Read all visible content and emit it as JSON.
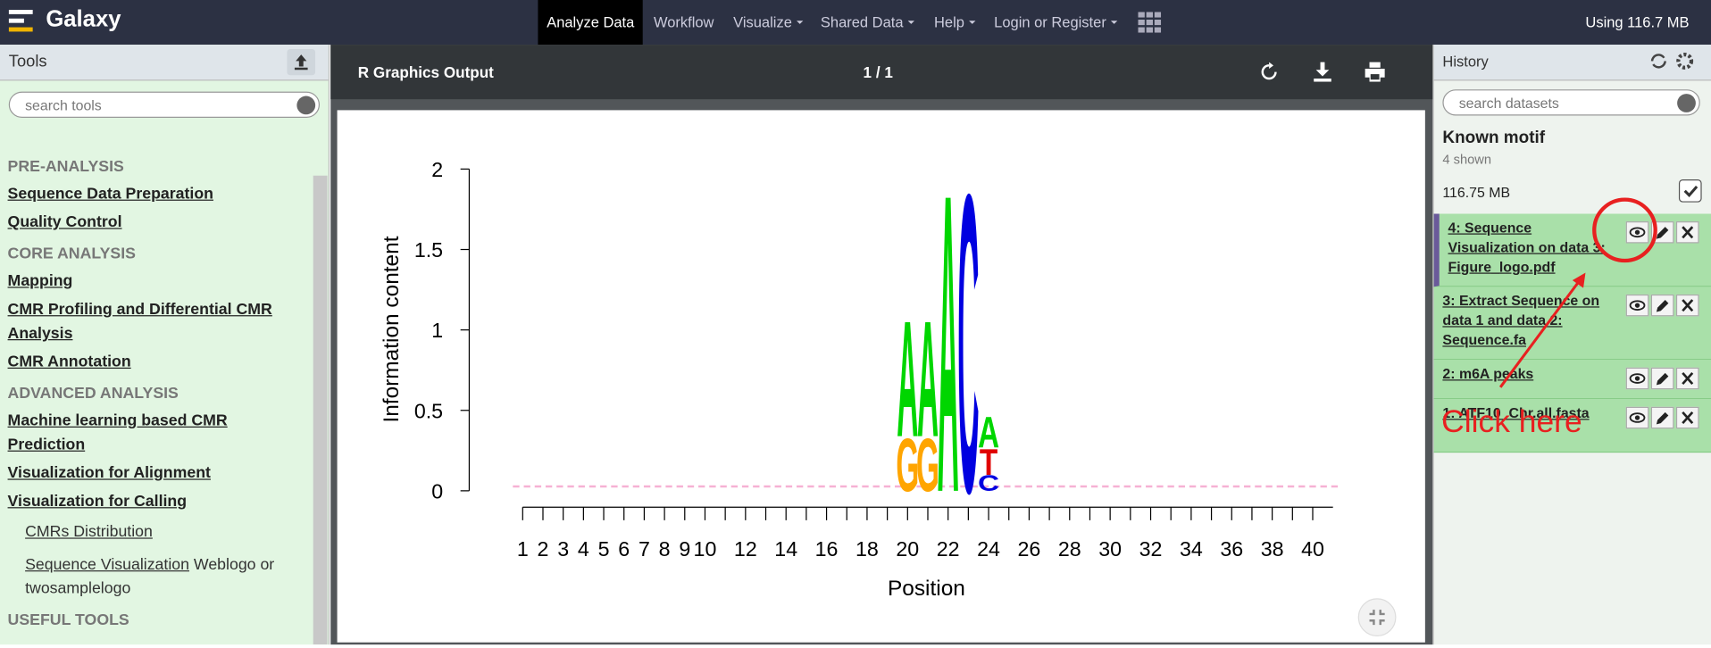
{
  "navbar": {
    "brand": "Galaxy",
    "items": [
      "Analyze Data",
      "Workflow",
      "Visualize",
      "Shared Data",
      "Help",
      "Login or Register"
    ],
    "usage": "Using 116.7 MB"
  },
  "tools": {
    "title": "Tools",
    "search_placeholder": "search tools",
    "sections": [
      {
        "heading": "PRE-ANALYSIS",
        "links": [
          "Sequence Data Preparation",
          "Quality Control"
        ]
      },
      {
        "heading": "CORE ANALYSIS",
        "links": [
          "Mapping",
          "CMR Profiling and Differential CMR Analysis",
          "CMR Annotation"
        ]
      },
      {
        "heading": "ADVANCED ANALYSIS",
        "links": [
          "Machine learning based CMR Prediction",
          "Visualization for Alignment",
          "Visualization for Calling"
        ]
      }
    ],
    "subtools": [
      {
        "name": "CMRs Distribution"
      },
      {
        "name": "Sequence Visualization",
        "desc": "Weblogo or twosamplelogo"
      }
    ],
    "next_heading": "USEFUL TOOLS"
  },
  "viewer": {
    "title": "R Graphics Output",
    "page": "1 / 1"
  },
  "chart_data": {
    "type": "logo",
    "xlabel": "Position",
    "ylabel": "Information content",
    "ylim": [
      0,
      2
    ],
    "yticks": [
      0,
      0.5,
      1,
      1.5,
      2
    ],
    "xlim": [
      1,
      40
    ],
    "xticks": [
      1,
      2,
      3,
      4,
      5,
      6,
      7,
      8,
      9,
      10,
      {
        "value": 11,
        "label": null
      },
      12,
      {
        "value": 13,
        "label": null
      },
      14,
      {
        "value": 15,
        "label": null
      },
      16,
      {
        "value": 17,
        "label": null
      },
      18,
      {
        "value": 19,
        "label": null
      },
      20,
      {
        "value": 21,
        "label": null
      },
      22,
      {
        "value": 23,
        "label": null
      },
      24,
      {
        "value": 25,
        "label": null
      },
      26,
      {
        "value": 27,
        "label": null
      },
      28,
      {
        "value": 29,
        "label": null
      },
      30,
      {
        "value": 31,
        "label": null
      },
      32,
      {
        "value": 33,
        "label": null
      },
      34,
      {
        "value": 35,
        "label": null
      },
      36,
      {
        "value": 37,
        "label": null
      },
      38,
      {
        "value": 39,
        "label": null
      },
      40
    ],
    "colors": {
      "A": "#00d600",
      "C": "#0000e0",
      "G": "#ffa500",
      "T": "#e00000"
    },
    "stacks": [
      {
        "x": 20,
        "letters": [
          {
            "letter": "G",
            "height": 0.34
          },
          {
            "letter": "A",
            "height": 0.75
          }
        ]
      },
      {
        "x": 21,
        "letters": [
          {
            "letter": "G",
            "height": 0.34
          },
          {
            "letter": "A",
            "height": 0.75
          }
        ]
      },
      {
        "x": 22,
        "letters": [
          {
            "letter": "A",
            "height": 1.93
          }
        ]
      },
      {
        "x": 23,
        "letters": [
          {
            "letter": "C",
            "height": 1.93
          }
        ]
      },
      {
        "x": 24,
        "letters": [
          {
            "letter": "C",
            "height": 0.1
          },
          {
            "letter": "T",
            "height": 0.17
          },
          {
            "letter": "A",
            "height": 0.2
          }
        ]
      }
    ]
  },
  "history": {
    "title": "History",
    "search_placeholder": "search datasets",
    "name": "Known motif",
    "shown": "4 shown",
    "size": "116.75 MB",
    "datasets": [
      "4: Sequence Visualization on data 3: Figure_logo.pdf",
      "3: Extract Sequence on data 1 and data 2: Sequence.fa",
      "2: m6A peaks",
      "1: ATF10_Chr.all.fasta"
    ]
  },
  "annotation": "Click here"
}
